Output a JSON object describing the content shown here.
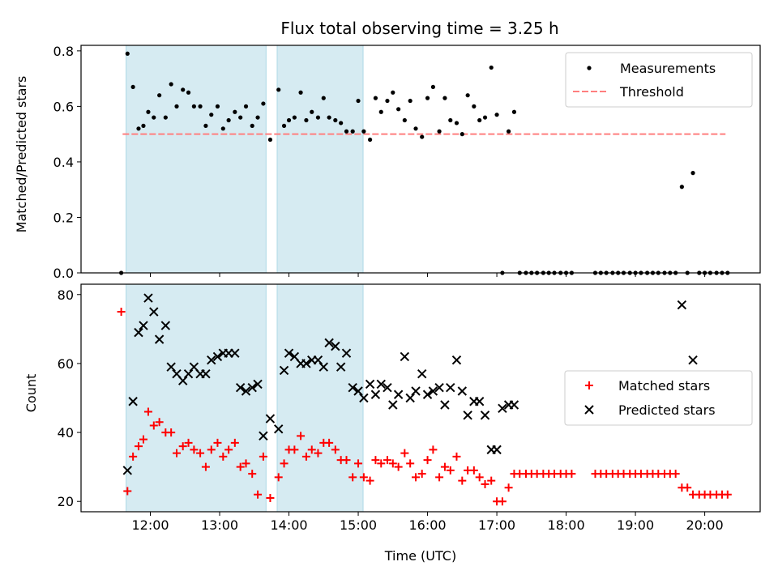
{
  "chart_data": [
    {
      "type": "scatter",
      "title": "Flux total observing time = 3.25 h",
      "xlabel": "",
      "ylabel": "Matched/Predicted stars",
      "ylim": [
        0,
        0.82
      ],
      "xlim": [
        11.0,
        20.8
      ],
      "x_ticks": [
        12,
        13,
        14,
        15,
        16,
        17,
        18,
        19,
        20
      ],
      "y_ticks": [
        0.0,
        0.2,
        0.4,
        0.6,
        0.8
      ],
      "y_tick_labels": [
        "0.0",
        "0.2",
        "0.4",
        "0.6",
        "0.8"
      ],
      "grid": false,
      "legend": "top-right",
      "shaded_intervals": [
        [
          11.65,
          13.67
        ],
        [
          13.83,
          15.07
        ]
      ],
      "threshold": {
        "name": "Threshold",
        "value": 0.5,
        "x_range": [
          11.6,
          20.3
        ],
        "color": "#ff7f7f"
      },
      "series": [
        {
          "name": "Measurements",
          "color": "#000000",
          "x": [
            11.58,
            11.67,
            11.75,
            11.83,
            11.9,
            11.97,
            12.05,
            12.13,
            12.22,
            12.3,
            12.38,
            12.47,
            12.55,
            12.63,
            12.72,
            12.8,
            12.88,
            12.97,
            13.05,
            13.13,
            13.22,
            13.3,
            13.38,
            13.47,
            13.55,
            13.63,
            13.73,
            13.85,
            13.93,
            14.0,
            14.08,
            14.17,
            14.25,
            14.33,
            14.42,
            14.5,
            14.58,
            14.67,
            14.75,
            14.83,
            14.92,
            15.0,
            15.08,
            15.17,
            15.25,
            15.33,
            15.42,
            15.5,
            15.58,
            15.67,
            15.75,
            15.83,
            15.92,
            16.0,
            16.08,
            16.17,
            16.25,
            16.33,
            16.42,
            16.5,
            16.58,
            16.67,
            16.75,
            16.83,
            16.92,
            17.0,
            17.08,
            17.17,
            17.25,
            17.33,
            17.42,
            17.5,
            17.58,
            17.67,
            17.75,
            17.83,
            17.92,
            18.0,
            18.08,
            18.42,
            18.5,
            18.58,
            18.67,
            18.75,
            18.83,
            18.92,
            19.0,
            19.08,
            19.17,
            19.25,
            19.33,
            19.42,
            19.5,
            19.58,
            19.67,
            19.75,
            19.83,
            19.92,
            20.0,
            20.08,
            20.17,
            20.25,
            20.33
          ],
          "y": [
            0.0,
            0.79,
            0.67,
            0.52,
            0.53,
            0.58,
            0.56,
            0.64,
            0.56,
            0.68,
            0.6,
            0.66,
            0.65,
            0.6,
            0.6,
            0.53,
            0.57,
            0.6,
            0.52,
            0.55,
            0.58,
            0.56,
            0.6,
            0.53,
            0.56,
            0.61,
            0.48,
            0.66,
            0.53,
            0.55,
            0.56,
            0.65,
            0.55,
            0.58,
            0.56,
            0.63,
            0.56,
            0.55,
            0.54,
            0.51,
            0.51,
            0.62,
            0.51,
            0.48,
            0.63,
            0.58,
            0.62,
            0.65,
            0.59,
            0.55,
            0.62,
            0.52,
            0.49,
            0.63,
            0.67,
            0.51,
            0.63,
            0.55,
            0.54,
            0.5,
            0.64,
            0.6,
            0.55,
            0.56,
            0.74,
            0.57,
            0.0,
            0.51,
            0.58,
            0.0,
            0.0,
            0.0,
            0.0,
            0.0,
            0.0,
            0.0,
            0.0,
            0.0,
            0.0,
            0.0,
            0.0,
            0.0,
            0.0,
            0.0,
            0.0,
            0.0,
            0.0,
            0.0,
            0.0,
            0.0,
            0.0,
            0.0,
            0.0,
            0.0,
            0.31,
            0.0,
            0.36,
            0.0,
            0.0,
            0.0,
            0.0,
            0.0,
            0.0
          ]
        }
      ]
    },
    {
      "type": "scatter",
      "title": "",
      "xlabel": "Time (UTC)",
      "ylabel": "Count",
      "ylim": [
        17,
        83
      ],
      "xlim": [
        11.0,
        20.8
      ],
      "x_ticks": [
        12,
        13,
        14,
        15,
        16,
        17,
        18,
        19,
        20
      ],
      "x_tick_labels": [
        "12:00",
        "13:00",
        "14:00",
        "15:00",
        "16:00",
        "17:00",
        "18:00",
        "19:00",
        "20:00"
      ],
      "y_ticks": [
        20,
        40,
        60,
        80
      ],
      "y_tick_labels": [
        "20",
        "40",
        "60",
        "80"
      ],
      "grid": false,
      "legend": "center-right",
      "shaded_intervals": [
        [
          11.65,
          13.67
        ],
        [
          13.83,
          15.07
        ]
      ],
      "series": [
        {
          "name": "Matched stars",
          "marker": "plus",
          "color": "#ff0000",
          "x": [
            11.58,
            11.67,
            11.75,
            11.83,
            11.9,
            11.97,
            12.05,
            12.13,
            12.22,
            12.3,
            12.38,
            12.47,
            12.55,
            12.63,
            12.72,
            12.8,
            12.88,
            12.97,
            13.05,
            13.13,
            13.22,
            13.3,
            13.38,
            13.47,
            13.55,
            13.63,
            13.73,
            13.85,
            13.93,
            14.0,
            14.08,
            14.17,
            14.25,
            14.33,
            14.42,
            14.5,
            14.58,
            14.67,
            14.75,
            14.83,
            14.92,
            15.0,
            15.08,
            15.17,
            15.25,
            15.33,
            15.42,
            15.5,
            15.58,
            15.67,
            15.75,
            15.83,
            15.92,
            16.0,
            16.08,
            16.17,
            16.25,
            16.33,
            16.42,
            16.5,
            16.58,
            16.67,
            16.75,
            16.83,
            16.92,
            17.0,
            17.08,
            17.17,
            17.25,
            17.33,
            17.42,
            17.5,
            17.58,
            17.67,
            17.75,
            17.83,
            17.92,
            18.0,
            18.08,
            18.42,
            18.5,
            18.58,
            18.67,
            18.75,
            18.83,
            18.92,
            19.0,
            19.08,
            19.17,
            19.25,
            19.33,
            19.42,
            19.5,
            19.58,
            19.67,
            19.75,
            19.83,
            19.92,
            20.0,
            20.08,
            20.17,
            20.25,
            20.33
          ],
          "y": [
            75,
            23,
            33,
            36,
            38,
            46,
            42,
            43,
            40,
            40,
            34,
            36,
            37,
            35,
            34,
            30,
            35,
            37,
            33,
            35,
            37,
            30,
            31,
            28,
            22,
            33,
            21,
            27,
            31,
            35,
            35,
            39,
            33,
            35,
            34,
            37,
            37,
            35,
            32,
            32,
            27,
            31,
            27,
            26,
            32,
            31,
            32,
            31,
            30,
            34,
            31,
            27,
            28,
            32,
            35,
            27,
            30,
            29,
            33,
            26,
            29,
            29,
            27,
            25,
            26,
            20,
            20,
            24,
            28,
            28,
            28,
            28,
            28,
            28,
            28,
            28,
            28,
            28,
            28,
            28,
            28,
            28,
            28,
            28,
            28,
            28,
            28,
            28,
            28,
            28,
            28,
            28,
            28,
            28,
            24,
            24,
            22,
            22,
            22,
            22,
            22,
            22,
            22
          ]
        },
        {
          "name": "Predicted stars",
          "marker": "x",
          "color": "#000000",
          "x": [
            11.67,
            11.75,
            11.83,
            11.9,
            11.97,
            12.05,
            12.13,
            12.22,
            12.3,
            12.38,
            12.47,
            12.55,
            12.63,
            12.72,
            12.8,
            12.88,
            12.97,
            13.05,
            13.13,
            13.22,
            13.3,
            13.38,
            13.47,
            13.55,
            13.63,
            13.73,
            13.85,
            13.93,
            14.0,
            14.08,
            14.17,
            14.25,
            14.33,
            14.42,
            14.5,
            14.58,
            14.67,
            14.75,
            14.83,
            14.92,
            15.0,
            15.08,
            15.17,
            15.25,
            15.33,
            15.42,
            15.5,
            15.58,
            15.67,
            15.75,
            15.83,
            15.92,
            16.0,
            16.08,
            16.17,
            16.25,
            16.33,
            16.42,
            16.5,
            16.58,
            16.67,
            16.75,
            16.83,
            16.92,
            17.0,
            17.08,
            17.17,
            17.25,
            19.67,
            19.83
          ],
          "y": [
            29,
            49,
            69,
            71,
            79,
            75,
            67,
            71,
            59,
            57,
            55,
            57,
            59,
            57,
            57,
            61,
            62,
            63,
            63,
            63,
            53,
            52,
            53,
            54,
            39,
            44,
            41,
            58,
            63,
            62,
            60,
            60,
            61,
            61,
            59,
            66,
            65,
            59,
            63,
            53,
            52,
            50,
            54,
            51,
            54,
            53,
            48,
            51,
            62,
            50,
            52,
            57,
            51,
            52,
            53,
            48,
            53,
            61,
            52,
            45,
            49,
            49,
            45,
            35,
            35,
            47,
            48,
            48,
            77,
            61
          ]
        }
      ]
    }
  ]
}
